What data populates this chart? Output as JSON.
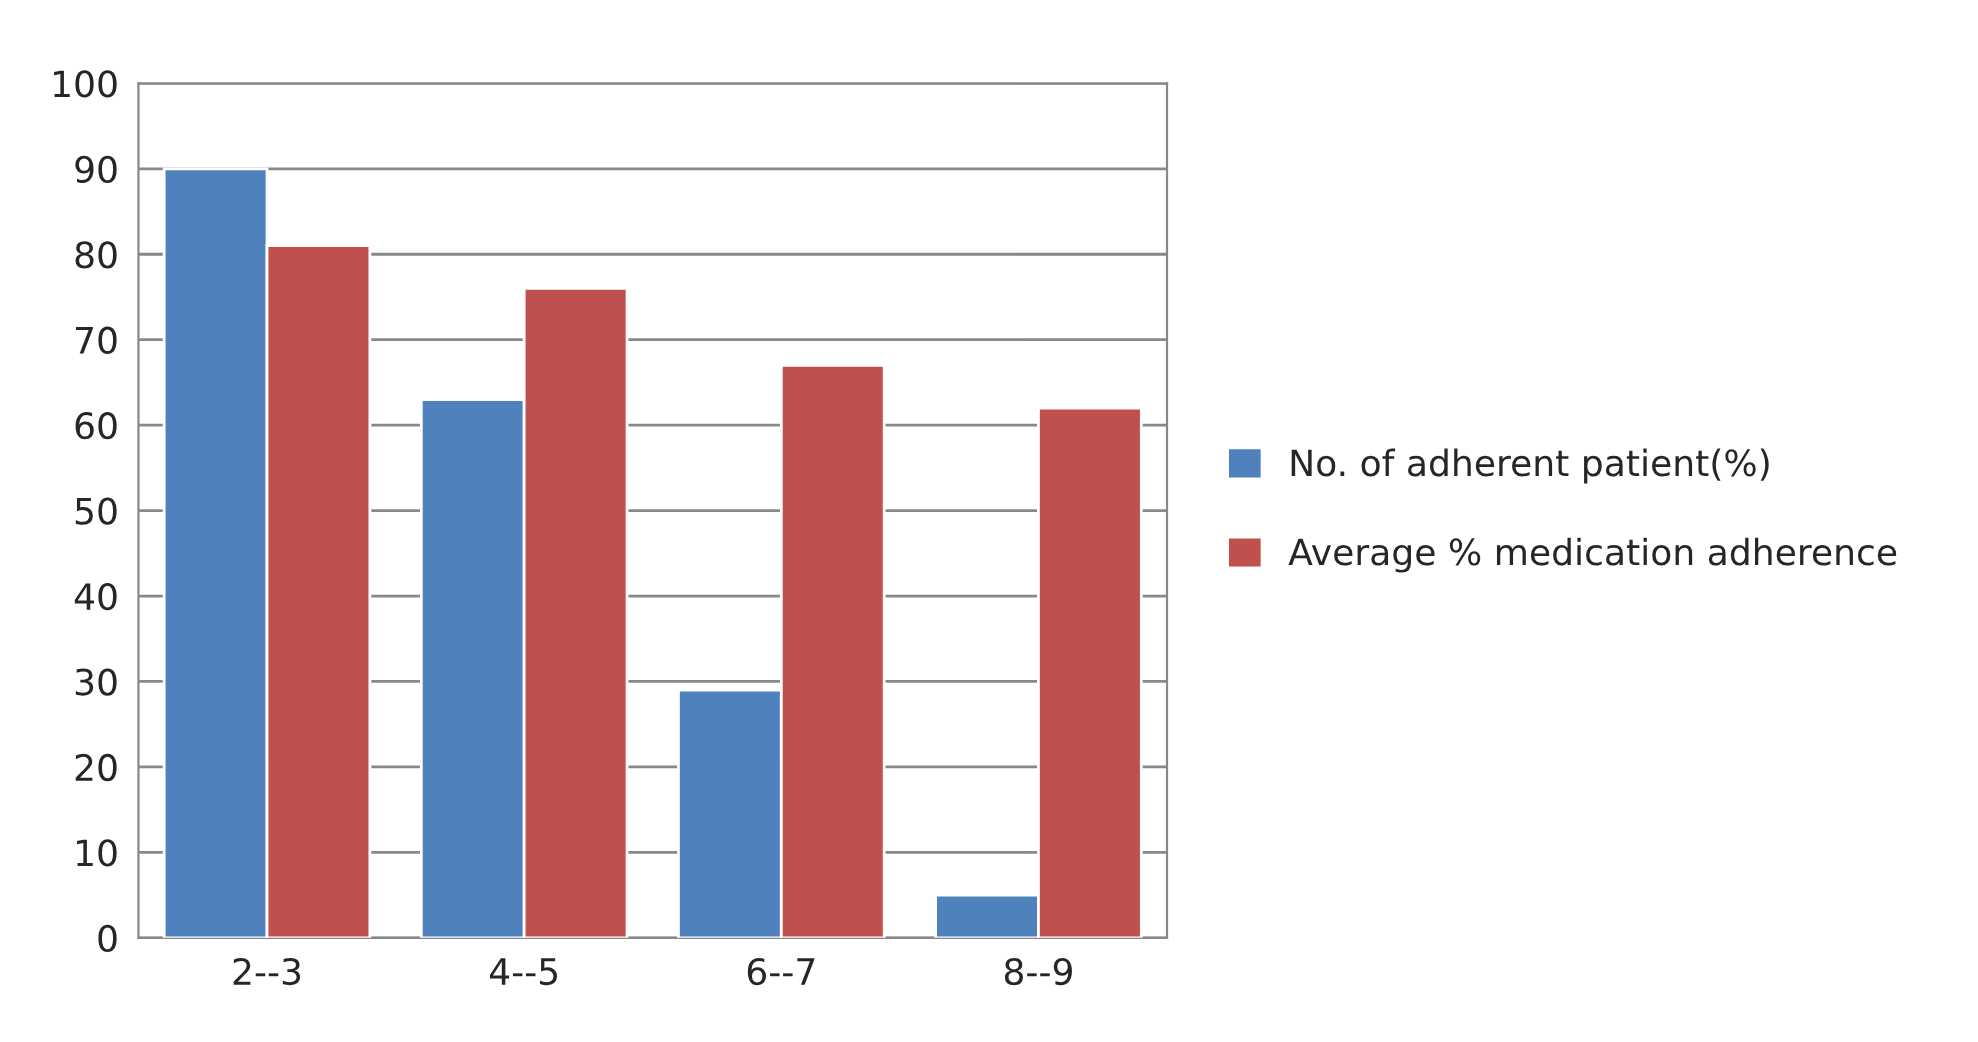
{
  "chart_data": {
    "type": "bar",
    "categories": [
      "2--3",
      "4--5",
      "6--7",
      "8--9"
    ],
    "series": [
      {
        "name": "No. of adherent patient(%)",
        "color": "#4f81bd",
        "values": [
          90,
          63,
          29,
          5
        ]
      },
      {
        "name": "Average % medication adherence",
        "color": "#c0504d",
        "values": [
          81,
          76,
          67,
          62
        ]
      }
    ],
    "ylim": [
      0,
      100
    ],
    "yticks": [
      0,
      10,
      20,
      30,
      40,
      50,
      60,
      70,
      80,
      90,
      100
    ],
    "grid": "y",
    "legend": "right"
  }
}
